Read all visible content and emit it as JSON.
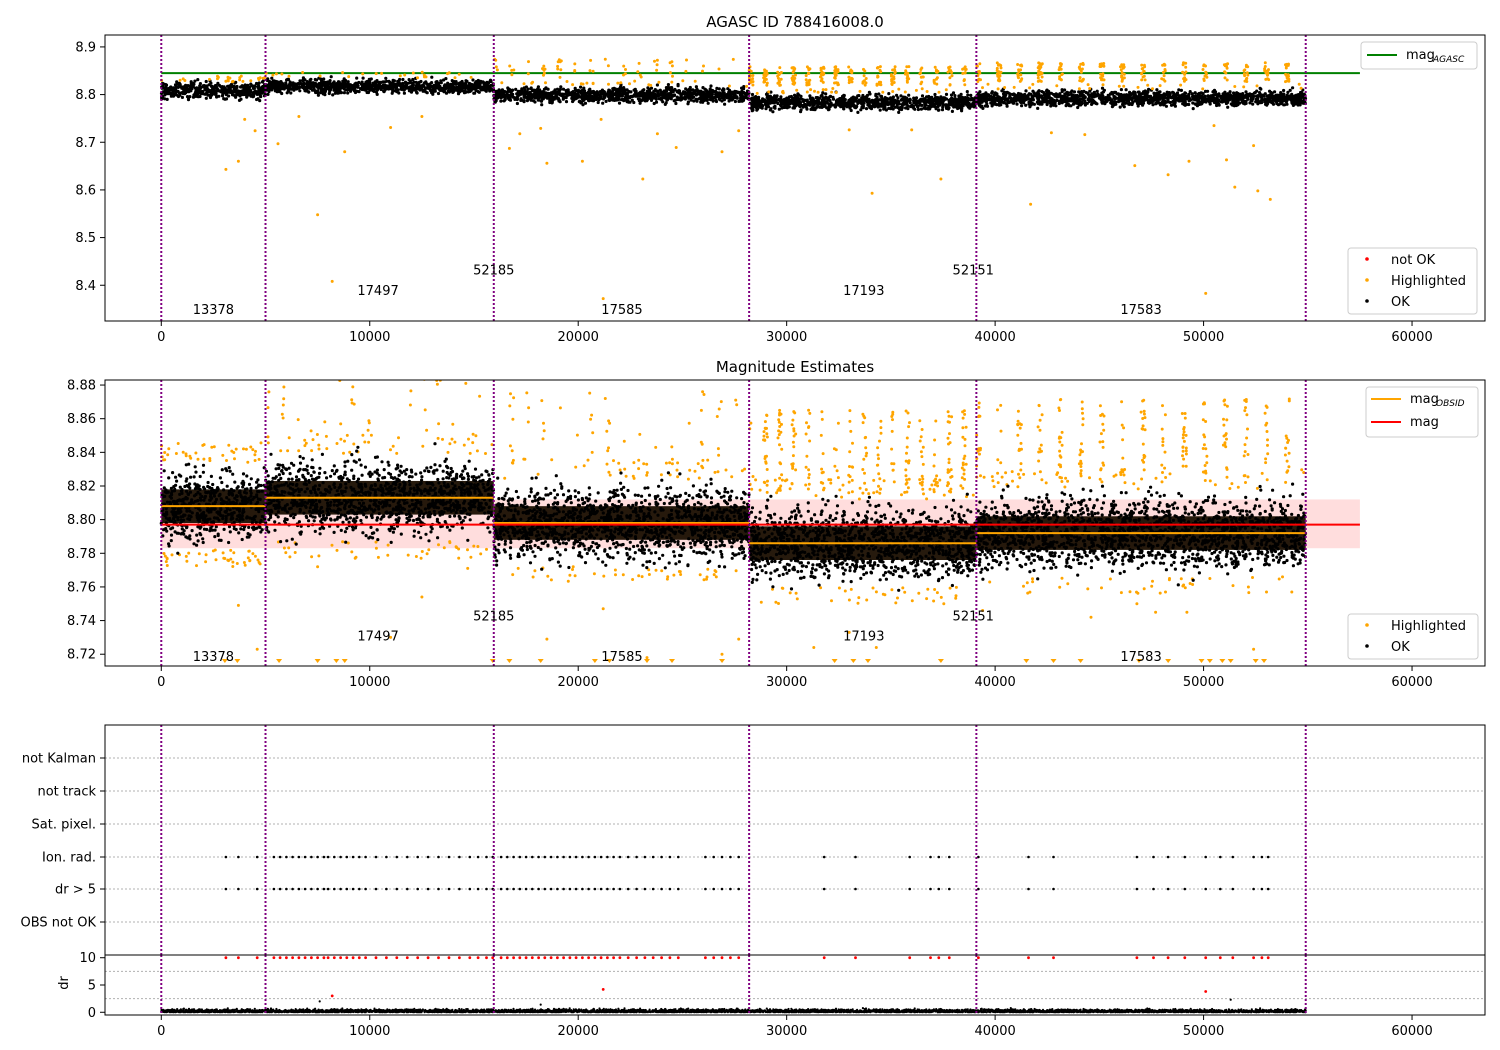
{
  "chart_data": [
    {
      "type": "scatter",
      "title": "AGASC ID 788416008.0",
      "xlabel": "",
      "ylabel": "",
      "xlim": [
        -2700,
        63500
      ],
      "ylim": [
        8.325,
        8.925
      ],
      "xticks": [
        0,
        10000,
        20000,
        30000,
        40000,
        50000,
        60000
      ],
      "xtick_labels": [
        "0",
        "10000",
        "20000",
        "30000",
        "40000",
        "50000",
        "60000"
      ],
      "yticks": [
        8.4,
        8.5,
        8.6,
        8.7,
        8.8,
        8.9
      ],
      "ytick_labels": [
        "8.4",
        "8.5",
        "8.6",
        "8.7",
        "8.8",
        "8.9"
      ],
      "obs_boundaries": [
        0,
        5000,
        15950,
        28200,
        39100,
        54900
      ],
      "obsids": [
        {
          "label": "13378",
          "x": 2500,
          "y": 8.35
        },
        {
          "label": "17497",
          "x": 10400,
          "y": 8.39
        },
        {
          "label": "52185",
          "x": 15950,
          "y": 8.433
        },
        {
          "label": "17585",
          "x": 22100,
          "y": 8.35
        },
        {
          "label": "17193",
          "x": 33700,
          "y": 8.39
        },
        {
          "label": "52151",
          "x": 38950,
          "y": 8.433
        },
        {
          "label": "17583",
          "x": 47000,
          "y": 8.35
        }
      ],
      "segments": [
        {
          "x0": 0,
          "x1": 5000,
          "center": 8.809,
          "spread": 0.024,
          "high_frac": 0.0
        },
        {
          "x0": 5000,
          "x1": 15950,
          "center": 8.817,
          "spread": 0.02,
          "high_frac": 0.0
        },
        {
          "x0": 15950,
          "x1": 28200,
          "center": 8.799,
          "spread": 0.022,
          "high_frac": 0.02
        },
        {
          "x0": 28200,
          "x1": 39100,
          "center": 8.784,
          "spread": 0.022,
          "high_frac": 0.1
        },
        {
          "x0": 39100,
          "x1": 54900,
          "center": 8.792,
          "spread": 0.022,
          "high_frac": 0.07
        }
      ],
      "reference_line": {
        "name": "mag_AGASC",
        "y": 8.845,
        "x0": 0,
        "x1": 57500,
        "color": "#008000"
      },
      "outliers": [
        [
          3100,
          8.643
        ],
        [
          3700,
          8.66
        ],
        [
          4000,
          8.748
        ],
        [
          4500,
          8.724
        ],
        [
          5600,
          8.697
        ],
        [
          6600,
          8.754
        ],
        [
          7500,
          8.548
        ],
        [
          8200,
          8.408
        ],
        [
          8800,
          8.68
        ],
        [
          11000,
          8.731
        ],
        [
          12500,
          8.754
        ],
        [
          16700,
          8.687
        ],
        [
          17200,
          8.718
        ],
        [
          18200,
          8.729
        ],
        [
          18500,
          8.656
        ],
        [
          20200,
          8.66
        ],
        [
          21100,
          8.748
        ],
        [
          21200,
          8.372
        ],
        [
          21300,
          8.874
        ],
        [
          23100,
          8.623
        ],
        [
          23800,
          8.718
        ],
        [
          24700,
          8.689
        ],
        [
          26900,
          8.68
        ],
        [
          27700,
          8.724
        ],
        [
          33000,
          8.726
        ],
        [
          34100,
          8.593
        ],
        [
          36000,
          8.726
        ],
        [
          37400,
          8.623
        ],
        [
          42700,
          8.72
        ],
        [
          41700,
          8.57
        ],
        [
          44300,
          8.716
        ],
        [
          46700,
          8.651
        ],
        [
          48300,
          8.632
        ],
        [
          49300,
          8.66
        ],
        [
          50100,
          8.383
        ],
        [
          50500,
          8.735
        ],
        [
          51100,
          8.663
        ],
        [
          51500,
          8.606
        ],
        [
          52600,
          8.598
        ],
        [
          53200,
          8.58
        ],
        [
          52400,
          8.693
        ]
      ],
      "legends": [
        {
          "position": "top-right",
          "entries": [
            {
              "label": "mag",
              "sub": "AGASC",
              "color": "#008000",
              "kind": "line"
            }
          ]
        },
        {
          "position": "lower-right",
          "entries": [
            {
              "label": "not OK",
              "color": "#ff0000",
              "kind": "dot"
            },
            {
              "label": "Highlighted",
              "color": "#ffa500",
              "kind": "dot"
            },
            {
              "label": "OK",
              "color": "#000000",
              "kind": "dot"
            }
          ]
        }
      ],
      "colors": {
        "ok": "#000000",
        "highlighted": "#ffa500",
        "not_ok": "#ff0000",
        "boundary": "#800080"
      }
    },
    {
      "type": "scatter",
      "title": "Magnitude Estimates",
      "xlabel": "",
      "ylabel": "",
      "xlim": [
        -2700,
        63500
      ],
      "ylim": [
        8.713,
        8.883
      ],
      "xticks": [
        0,
        10000,
        20000,
        30000,
        40000,
        50000,
        60000
      ],
      "xtick_labels": [
        "0",
        "10000",
        "20000",
        "30000",
        "40000",
        "50000",
        "60000"
      ],
      "yticks": [
        8.72,
        8.74,
        8.76,
        8.78,
        8.8,
        8.82,
        8.84,
        8.86,
        8.88
      ],
      "ytick_labels": [
        "8.72",
        "8.74",
        "8.76",
        "8.78",
        "8.80",
        "8.82",
        "8.84",
        "8.86",
        "8.88"
      ],
      "obs_boundaries": [
        0,
        5000,
        15950,
        28200,
        39100,
        54900
      ],
      "obsids": [
        {
          "label": "13378",
          "x": 2500,
          "y": 8.719
        },
        {
          "label": "17497",
          "x": 10400,
          "y": 8.731
        },
        {
          "label": "52185",
          "x": 15950,
          "y": 8.743
        },
        {
          "label": "17585",
          "x": 22100,
          "y": 8.719
        },
        {
          "label": "17193",
          "x": 33700,
          "y": 8.731
        },
        {
          "label": "52151",
          "x": 38950,
          "y": 8.743
        },
        {
          "label": "17583",
          "x": 47000,
          "y": 8.719
        }
      ],
      "segments": [
        {
          "x0": 0,
          "x1": 5000,
          "center": 8.808,
          "spread": 0.024,
          "high_frac": 0.0
        },
        {
          "x0": 5000,
          "x1": 15950,
          "center": 8.813,
          "spread": 0.025,
          "high_frac": 0.02
        },
        {
          "x0": 15950,
          "x1": 28200,
          "center": 8.798,
          "spread": 0.025,
          "high_frac": 0.02
        },
        {
          "x0": 28200,
          "x1": 39100,
          "center": 8.786,
          "spread": 0.024,
          "high_frac": 0.1
        },
        {
          "x0": 39100,
          "x1": 54900,
          "center": 8.792,
          "spread": 0.024,
          "high_frac": 0.07
        }
      ],
      "mag_obsid": [
        {
          "x0": 0,
          "x1": 5000,
          "y": 8.808
        },
        {
          "x0": 5000,
          "x1": 15950,
          "y": 8.813
        },
        {
          "x0": 15950,
          "x1": 28200,
          "y": 8.798
        },
        {
          "x0": 28200,
          "x1": 39100,
          "y": 8.786
        },
        {
          "x0": 39100,
          "x1": 54900,
          "y": 8.792
        }
      ],
      "mag": {
        "y": 8.797,
        "band": [
          8.783,
          8.812
        ],
        "x0": 0,
        "x1": 57500,
        "color": "#ff0000"
      },
      "outliers": [
        [
          3000,
          8.777
        ],
        [
          3700,
          8.749
        ],
        [
          4600,
          8.723
        ],
        [
          7500,
          8.772
        ],
        [
          9300,
          8.777
        ],
        [
          11000,
          8.73
        ],
        [
          12500,
          8.754
        ],
        [
          14700,
          8.771
        ],
        [
          18500,
          8.729
        ],
        [
          21200,
          8.747
        ],
        [
          21300,
          8.872
        ],
        [
          23300,
          8.718
        ],
        [
          26900,
          8.72
        ],
        [
          27700,
          8.729
        ],
        [
          31300,
          8.724
        ],
        [
          33000,
          8.733
        ],
        [
          34300,
          8.724
        ],
        [
          39400,
          8.746
        ],
        [
          44600,
          8.742
        ],
        [
          46800,
          8.75
        ],
        [
          47700,
          8.745
        ],
        [
          49200,
          8.745
        ],
        [
          52400,
          8.723
        ]
      ],
      "low_markers": [
        3050,
        3650,
        5650,
        7500,
        8400,
        8800,
        15900,
        16700,
        18200,
        20800,
        21500,
        23300,
        24500,
        26900,
        32300,
        33200,
        33900,
        37400,
        41500,
        42800,
        44100,
        46900,
        48300,
        49900,
        50300,
        50900,
        51300,
        52500,
        52900
      ],
      "legends": [
        {
          "position": "top-right",
          "entries": [
            {
              "label": "mag",
              "sub": "OBSID",
              "color": "#ffa500",
              "kind": "line"
            },
            {
              "label": "mag",
              "sub": "",
              "color": "#ff0000",
              "kind": "line"
            }
          ]
        },
        {
          "position": "lower-right",
          "entries": [
            {
              "label": "Highlighted",
              "color": "#ffa500",
              "kind": "dot"
            },
            {
              "label": "OK",
              "color": "#000000",
              "kind": "dot"
            }
          ]
        }
      ],
      "colors": {
        "ok": "#000000",
        "highlighted": "#ffa500",
        "mag_band": "#ffdddd"
      }
    },
    {
      "type": "scatter",
      "title": "",
      "xlabel": "",
      "ylabel": "",
      "xlim": [
        -2700,
        63500
      ],
      "flag_rows": [
        "not Kalman",
        "not track",
        "Sat. pixel.",
        "Ion. rad.",
        "dr > 5",
        "OBS not OK"
      ],
      "flagged_times": [
        3100,
        3700,
        4600,
        5400,
        5700,
        6000,
        6300,
        6600,
        6900,
        7200,
        7500,
        7800,
        8000,
        8300,
        8600,
        8900,
        9200,
        9500,
        9800,
        10300,
        10800,
        11300,
        11800,
        12300,
        12800,
        13300,
        13800,
        14300,
        14800,
        15200,
        15600,
        15900,
        16300,
        16600,
        16900,
        17200,
        17500,
        17800,
        18100,
        18400,
        18700,
        19000,
        19300,
        19600,
        19900,
        20200,
        20500,
        20800,
        21100,
        21400,
        21700,
        22000,
        22400,
        22800,
        23200,
        23600,
        24000,
        24400,
        24800,
        26100,
        26500,
        26900,
        27300,
        27700,
        31800,
        33300,
        35900,
        36900,
        37300,
        37800,
        39200,
        41600,
        42800,
        46800,
        47600,
        48300,
        49100,
        50100,
        50800,
        51400,
        52400,
        52800,
        53100
      ],
      "dr_panel": {
        "ylim": [
          -0.5,
          10.5
        ],
        "yticks": [
          0,
          5,
          10
        ],
        "ytick_labels": [
          "0",
          "5",
          "10"
        ],
        "ylabel": "dr",
        "extra_points": [
          [
            8200,
            3.0
          ],
          [
            21200,
            4.2
          ],
          [
            50100,
            3.8
          ],
          [
            7600,
            2.0
          ],
          [
            51300,
            2.3
          ],
          [
            18200,
            1.4
          ]
        ]
      },
      "obs_boundaries": [
        0,
        5000,
        15950,
        28200,
        39100,
        54900
      ],
      "xticks": [
        0,
        10000,
        20000,
        30000,
        40000,
        50000,
        60000
      ],
      "xtick_labels": [
        "0",
        "10000",
        "20000",
        "30000",
        "40000",
        "50000",
        "60000"
      ],
      "colors": {
        "ok": "#000000",
        "not_ok": "#ff0000",
        "grid": "#b0b0b0"
      }
    }
  ]
}
